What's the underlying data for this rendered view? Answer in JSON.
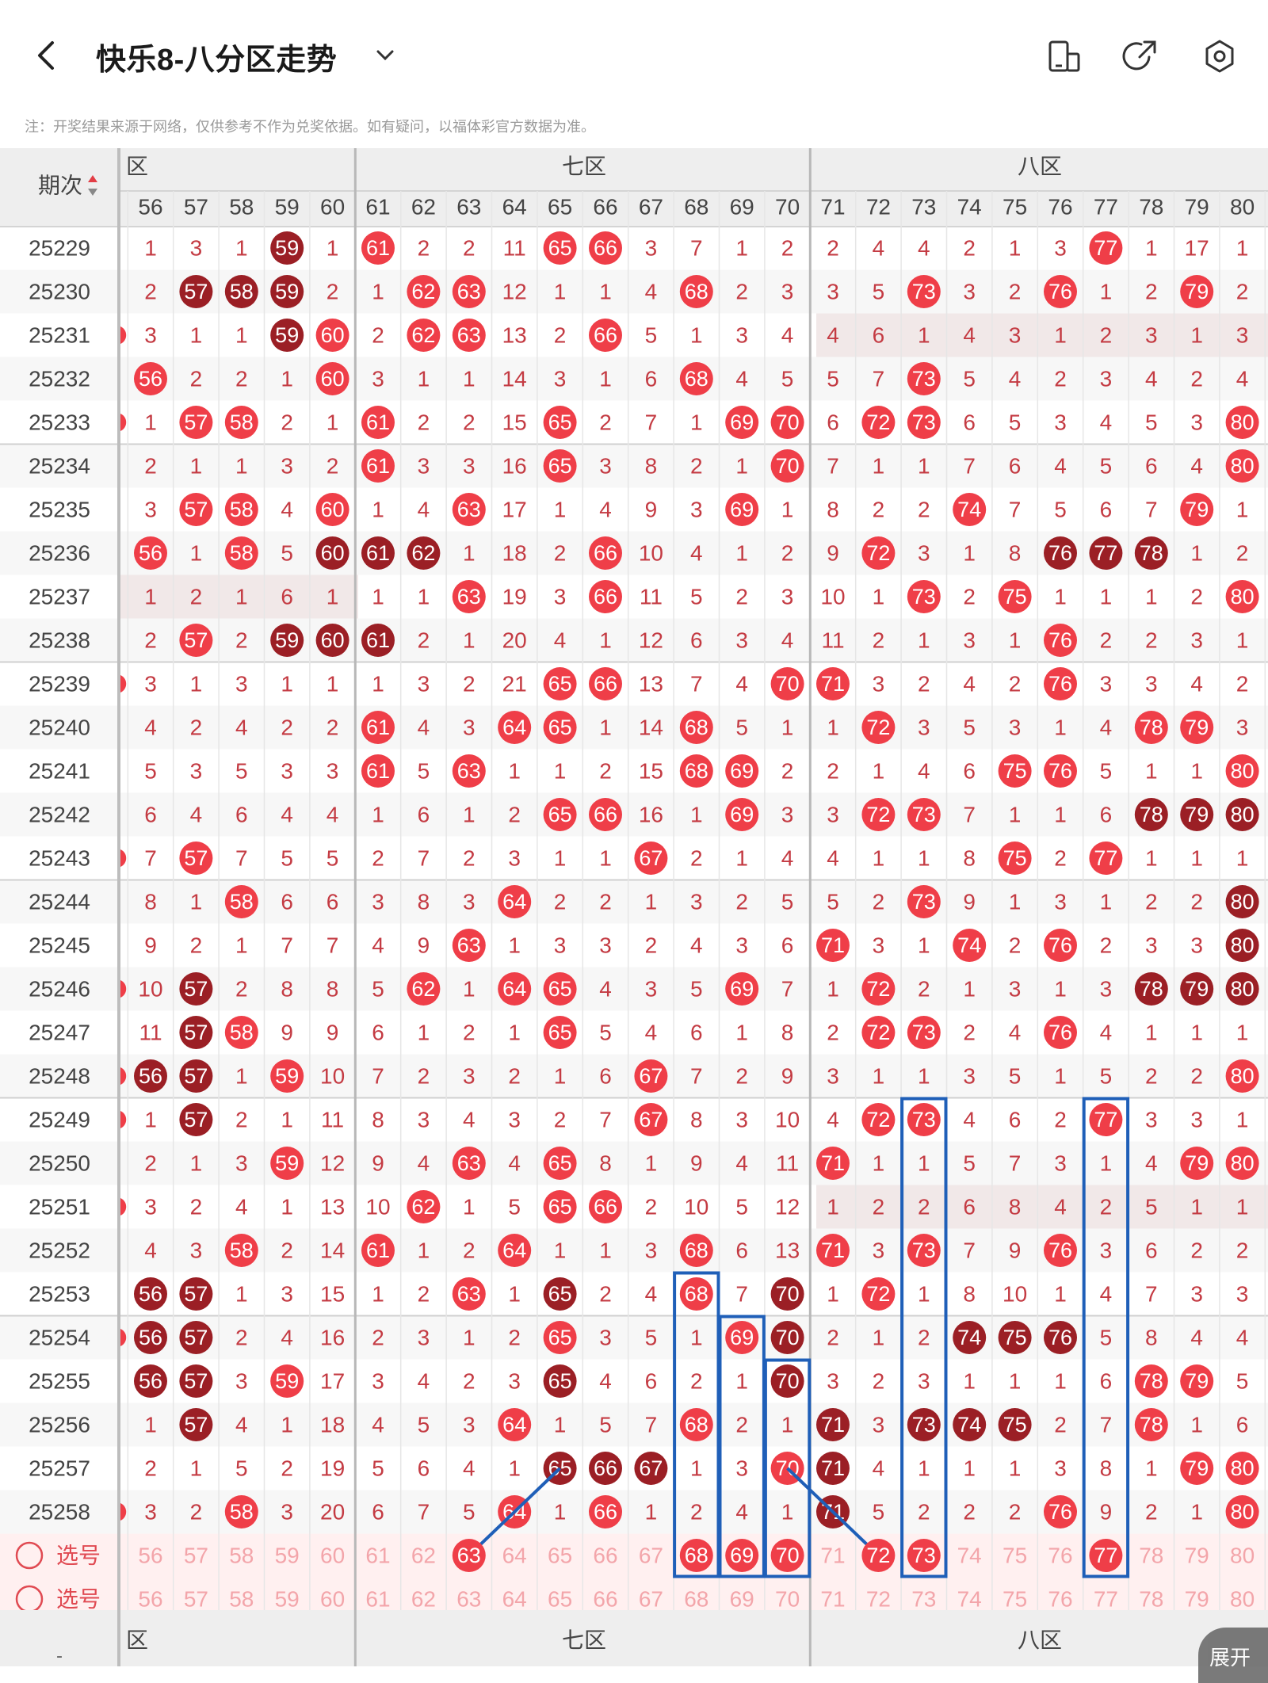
{
  "header": {
    "title": "快乐8-八分区走势",
    "notice": "注：开奖结果来源于网络，仅供参考不作为兑奖依据。如有疑问，以福体彩官方数据为准。"
  },
  "table": {
    "period_header": "期次",
    "zone_headers_visible": [
      "六区",
      "七区",
      "八区"
    ],
    "zone_header_fragments": [
      "区",
      "七区",
      "八区"
    ],
    "columns": [
      56,
      57,
      58,
      59,
      60,
      61,
      62,
      63,
      64,
      65,
      66,
      67,
      68,
      69,
      70,
      71,
      72,
      73,
      74,
      75,
      76,
      77,
      78,
      79,
      80
    ],
    "select_label": "选号",
    "expand_label": "展开",
    "footer_left": "-",
    "rows": [
      {
        "period": "25229",
        "lead": false,
        "cells": [
          "1",
          "3",
          "1",
          "59d",
          "1",
          "61",
          "2",
          "2",
          "11",
          "65",
          "66",
          "3",
          "7",
          "1",
          "2",
          "2",
          "4",
          "4",
          "2",
          "1",
          "3",
          "77",
          "1",
          "17",
          "1"
        ]
      },
      {
        "period": "25230",
        "lead": false,
        "cells": [
          "2",
          "57d",
          "58d",
          "59d",
          "2",
          "1",
          "62",
          "63",
          "12",
          "1",
          "1",
          "4",
          "68",
          "2",
          "3",
          "3",
          "5",
          "73",
          "3",
          "2",
          "76",
          "1",
          "2",
          "79",
          "2"
        ]
      },
      {
        "period": "25231",
        "lead": true,
        "cells": [
          "3",
          "1",
          "1",
          "59d",
          "60",
          "2",
          "62",
          "63",
          "13",
          "2",
          "66",
          "5",
          "1",
          "3",
          "4",
          "4",
          "6",
          "1",
          "4",
          "3",
          "1",
          "2",
          "3",
          "1",
          "3"
        ],
        "band": "high"
      },
      {
        "period": "25232",
        "lead": false,
        "cells": [
          "56",
          "2",
          "2",
          "1",
          "60",
          "3",
          "1",
          "1",
          "14",
          "3",
          "1",
          "6",
          "68",
          "4",
          "5",
          "5",
          "7",
          "73",
          "5",
          "4",
          "2",
          "3",
          "4",
          "2",
          "4"
        ]
      },
      {
        "period": "25233",
        "lead": true,
        "cells": [
          "1",
          "57",
          "58",
          "2",
          "1",
          "61",
          "2",
          "2",
          "15",
          "65",
          "2",
          "7",
          "1",
          "69",
          "70",
          "6",
          "72",
          "73",
          "6",
          "5",
          "3",
          "4",
          "5",
          "3",
          "80"
        ]
      },
      {
        "period": "25234",
        "lead": false,
        "cells": [
          "2",
          "1",
          "1",
          "3",
          "2",
          "61",
          "3",
          "3",
          "16",
          "65",
          "3",
          "8",
          "2",
          "1",
          "70",
          "7",
          "1",
          "1",
          "7",
          "6",
          "4",
          "5",
          "6",
          "4",
          "80"
        ]
      },
      {
        "period": "25235",
        "lead": false,
        "cells": [
          "3",
          "57",
          "58",
          "4",
          "60",
          "1",
          "4",
          "63",
          "17",
          "1",
          "4",
          "9",
          "3",
          "69",
          "1",
          "8",
          "2",
          "2",
          "74",
          "7",
          "5",
          "6",
          "7",
          "79",
          "1"
        ]
      },
      {
        "period": "25236",
        "lead": false,
        "cells": [
          "56",
          "1",
          "58",
          "5",
          "60d",
          "61d",
          "62d",
          "1",
          "18",
          "2",
          "66",
          "10",
          "4",
          "1",
          "2",
          "9",
          "72",
          "3",
          "1",
          "8",
          "76d",
          "77d",
          "78d",
          "1",
          "2"
        ]
      },
      {
        "period": "25237",
        "lead": false,
        "cells": [
          "1",
          "2",
          "1",
          "6",
          "1",
          "1",
          "1",
          "63",
          "19",
          "3",
          "66",
          "11",
          "5",
          "2",
          "3",
          "10",
          "1",
          "73",
          "2",
          "75",
          "1",
          "1",
          "1",
          "2",
          "80"
        ],
        "band": "low"
      },
      {
        "period": "25238",
        "lead": false,
        "cells": [
          "2",
          "57",
          "2",
          "59d",
          "60d",
          "61d",
          "2",
          "1",
          "20",
          "4",
          "1",
          "12",
          "6",
          "3",
          "4",
          "11",
          "2",
          "1",
          "3",
          "1",
          "76",
          "2",
          "2",
          "3",
          "1"
        ]
      },
      {
        "period": "25239",
        "lead": true,
        "cells": [
          "3",
          "1",
          "3",
          "1",
          "1",
          "1",
          "3",
          "2",
          "21",
          "65",
          "66",
          "13",
          "7",
          "4",
          "70",
          "71",
          "3",
          "2",
          "4",
          "2",
          "76",
          "3",
          "3",
          "4",
          "2"
        ]
      },
      {
        "period": "25240",
        "lead": false,
        "cells": [
          "4",
          "2",
          "4",
          "2",
          "2",
          "61",
          "4",
          "3",
          "64",
          "65",
          "1",
          "14",
          "68",
          "5",
          "1",
          "1",
          "72",
          "3",
          "5",
          "3",
          "1",
          "4",
          "78",
          "79",
          "3"
        ]
      },
      {
        "period": "25241",
        "lead": false,
        "cells": [
          "5",
          "3",
          "5",
          "3",
          "3",
          "61",
          "5",
          "63",
          "1",
          "1",
          "2",
          "15",
          "68",
          "69",
          "2",
          "2",
          "1",
          "4",
          "6",
          "75",
          "76",
          "5",
          "1",
          "1",
          "80"
        ]
      },
      {
        "period": "25242",
        "lead": false,
        "cells": [
          "6",
          "4",
          "6",
          "4",
          "4",
          "1",
          "6",
          "1",
          "2",
          "65",
          "66",
          "16",
          "1",
          "69",
          "3",
          "3",
          "72",
          "73",
          "7",
          "1",
          "1",
          "6",
          "78d",
          "79d",
          "80d"
        ]
      },
      {
        "period": "25243",
        "lead": true,
        "cells": [
          "7",
          "57",
          "7",
          "5",
          "5",
          "2",
          "7",
          "2",
          "3",
          "1",
          "1",
          "67",
          "2",
          "1",
          "4",
          "4",
          "1",
          "1",
          "8",
          "75",
          "2",
          "77",
          "1",
          "1",
          "1"
        ]
      },
      {
        "period": "25244",
        "lead": false,
        "cells": [
          "8",
          "1",
          "58",
          "6",
          "6",
          "3",
          "8",
          "3",
          "64",
          "2",
          "2",
          "1",
          "3",
          "2",
          "5",
          "5",
          "2",
          "73",
          "9",
          "1",
          "3",
          "1",
          "2",
          "2",
          "80d"
        ]
      },
      {
        "period": "25245",
        "lead": false,
        "cells": [
          "9",
          "2",
          "1",
          "7",
          "7",
          "4",
          "9",
          "63",
          "1",
          "3",
          "3",
          "2",
          "4",
          "3",
          "6",
          "71",
          "3",
          "1",
          "74",
          "2",
          "76",
          "2",
          "3",
          "3",
          "80d"
        ]
      },
      {
        "period": "25246",
        "lead": true,
        "cells": [
          "10",
          "57d",
          "2",
          "8",
          "8",
          "5",
          "62",
          "1",
          "64",
          "65",
          "4",
          "3",
          "5",
          "69",
          "7",
          "1",
          "72",
          "2",
          "1",
          "3",
          "1",
          "3",
          "78d",
          "79d",
          "80d"
        ]
      },
      {
        "period": "25247",
        "lead": false,
        "cells": [
          "11",
          "57d",
          "58",
          "9",
          "9",
          "6",
          "1",
          "2",
          "1",
          "65",
          "5",
          "4",
          "6",
          "1",
          "8",
          "2",
          "72",
          "73",
          "2",
          "4",
          "76",
          "4",
          "1",
          "1",
          "1"
        ]
      },
      {
        "period": "25248",
        "lead": true,
        "cells": [
          "56d",
          "57d",
          "1",
          "59",
          "10",
          "7",
          "2",
          "3",
          "2",
          "1",
          "6",
          "67",
          "7",
          "2",
          "9",
          "3",
          "1",
          "1",
          "3",
          "5",
          "1",
          "5",
          "2",
          "2",
          "80"
        ]
      },
      {
        "period": "25249",
        "lead": true,
        "cells": [
          "1",
          "57d",
          "2",
          "1",
          "11",
          "8",
          "3",
          "4",
          "3",
          "2",
          "7",
          "67",
          "8",
          "3",
          "10",
          "4",
          "72",
          "73",
          "4",
          "6",
          "2",
          "77",
          "3",
          "3",
          "1"
        ]
      },
      {
        "period": "25250",
        "lead": false,
        "cells": [
          "2",
          "1",
          "3",
          "59",
          "12",
          "9",
          "4",
          "63",
          "4",
          "65",
          "8",
          "1",
          "9",
          "4",
          "11",
          "71",
          "1",
          "1",
          "5",
          "7",
          "3",
          "1",
          "4",
          "79",
          "80"
        ]
      },
      {
        "period": "25251",
        "lead": true,
        "cells": [
          "3",
          "2",
          "4",
          "1",
          "13",
          "10",
          "62",
          "1",
          "5",
          "65",
          "66",
          "2",
          "10",
          "5",
          "12",
          "1",
          "2",
          "2",
          "6",
          "8",
          "4",
          "2",
          "5",
          "1",
          "1"
        ],
        "band": "high"
      },
      {
        "period": "25252",
        "lead": false,
        "cells": [
          "4",
          "3",
          "58",
          "2",
          "14",
          "61",
          "1",
          "2",
          "64",
          "1",
          "1",
          "3",
          "68",
          "6",
          "13",
          "71",
          "3",
          "73",
          "7",
          "9",
          "76",
          "3",
          "6",
          "2",
          "2"
        ]
      },
      {
        "period": "25253",
        "lead": false,
        "cells": [
          "56d",
          "57d",
          "1",
          "3",
          "15",
          "1",
          "2",
          "63",
          "1",
          "65d",
          "2",
          "4",
          "68",
          "7",
          "70d",
          "1",
          "72",
          "1",
          "8",
          "10",
          "1",
          "4",
          "7",
          "3",
          "3"
        ]
      },
      {
        "period": "25254",
        "lead": true,
        "cells": [
          "56d",
          "57d",
          "2",
          "4",
          "16",
          "2",
          "3",
          "1",
          "2",
          "65",
          "3",
          "5",
          "1",
          "69",
          "70d",
          "2",
          "1",
          "2",
          "74d",
          "75d",
          "76d",
          "5",
          "8",
          "4",
          "4"
        ]
      },
      {
        "period": "25255",
        "lead": false,
        "cells": [
          "56d",
          "57d",
          "3",
          "59",
          "17",
          "3",
          "4",
          "2",
          "3",
          "65d",
          "4",
          "6",
          "2",
          "1",
          "70d",
          "3",
          "2",
          "3",
          "1",
          "1",
          "1",
          "6",
          "78",
          "79",
          "5"
        ]
      },
      {
        "period": "25256",
        "lead": false,
        "cells": [
          "1",
          "57d",
          "4",
          "1",
          "18",
          "4",
          "5",
          "3",
          "64",
          "1",
          "5",
          "7",
          "68",
          "2",
          "1",
          "71d",
          "3",
          "73d",
          "74d",
          "75d",
          "2",
          "7",
          "78",
          "1",
          "6"
        ]
      },
      {
        "period": "25257",
        "lead": false,
        "cells": [
          "2",
          "1",
          "5",
          "2",
          "19",
          "5",
          "6",
          "4",
          "1",
          "65d",
          "66d",
          "67d",
          "1",
          "3",
          "70",
          "71d",
          "4",
          "1",
          "1",
          "1",
          "3",
          "8",
          "1",
          "79",
          "80"
        ]
      },
      {
        "period": "25258",
        "lead": true,
        "cells": [
          "3",
          "2",
          "58",
          "3",
          "20",
          "6",
          "7",
          "5",
          "64",
          "1",
          "66",
          "1",
          "2",
          "4",
          "1",
          "71d",
          "5",
          "2",
          "2",
          "2",
          "76",
          "9",
          "2",
          "1",
          "80"
        ]
      }
    ],
    "select_rows": [
      {
        "label": "选号",
        "picked": [
          63,
          68,
          69,
          70,
          72,
          73,
          77
        ]
      },
      {
        "label": "选号",
        "picked": []
      }
    ]
  },
  "colors": {
    "ball_red": "#ef3e48",
    "ball_dark": "#9b1f25",
    "digit_red": "#c43b43",
    "header_bg": "#eeeeee",
    "select_bg": "#fff0f0",
    "box_blue": "#1f5fb8"
  },
  "icons": [
    "back-icon",
    "chevron-down-icon",
    "phone-icon",
    "share-icon",
    "settings-icon",
    "sort-icon",
    "radio-icon"
  ]
}
